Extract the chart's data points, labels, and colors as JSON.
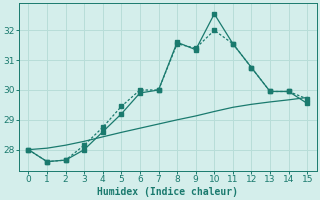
{
  "xlabel": "Humidex (Indice chaleur)",
  "x": [
    0,
    1,
    2,
    3,
    4,
    5,
    6,
    7,
    8,
    9,
    10,
    11,
    12,
    13,
    14,
    15
  ],
  "line1_y": [
    28.0,
    27.6,
    27.65,
    28.0,
    28.6,
    29.2,
    29.9,
    30.0,
    31.6,
    31.35,
    32.55,
    31.55,
    30.75,
    29.95,
    29.95,
    29.55
  ],
  "line2_y": [
    28.0,
    27.6,
    27.65,
    28.15,
    28.75,
    29.45,
    30.0,
    30.0,
    31.55,
    31.4,
    32.0,
    31.55,
    30.75,
    29.95,
    29.95,
    29.7
  ],
  "line3_y": [
    28.0,
    28.05,
    28.15,
    28.28,
    28.43,
    28.58,
    28.72,
    28.86,
    29.0,
    29.13,
    29.28,
    29.42,
    29.52,
    29.6,
    29.67,
    29.75
  ],
  "line_color": "#1a7a6e",
  "bg_color": "#d4eeeb",
  "grid_color": "#b8ddd8",
  "ylim": [
    27.3,
    32.9
  ],
  "xlim": [
    -0.5,
    15.5
  ],
  "yticks": [
    28,
    29,
    30,
    31,
    32
  ],
  "xticks": [
    0,
    1,
    2,
    3,
    4,
    5,
    6,
    7,
    8,
    9,
    10,
    11,
    12,
    13,
    14,
    15
  ],
  "xlabel_fontsize": 7,
  "tick_fontsize": 6.5
}
